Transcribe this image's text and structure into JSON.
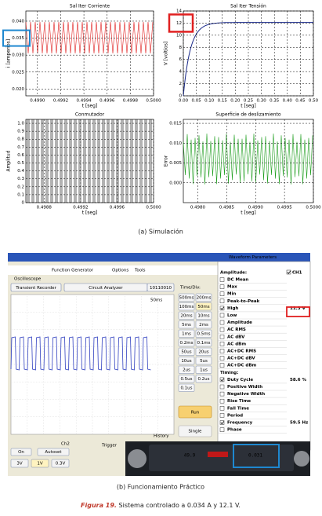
{
  "panels": [
    {
      "title": "Sal Iter Corriente",
      "xlabel": "t [seg]",
      "ylabel": "i [amperios]",
      "xlim": [
        0.4989,
        0.5
      ],
      "ylim": [
        0.018,
        0.043
      ],
      "xticks": [
        {
          "value": 0.499,
          "label": "0.4990"
        },
        {
          "value": 0.4992,
          "label": "0.4992"
        },
        {
          "value": 0.4994,
          "label": "0.4994"
        },
        {
          "value": 0.4996,
          "label": "0.4996"
        },
        {
          "value": 0.4998,
          "label": "0.4998"
        },
        {
          "value": 0.5,
          "label": "0.5000"
        }
      ],
      "yticks": [
        {
          "value": 0.02,
          "label": "0.020"
        },
        {
          "value": 0.025,
          "label": "0.025"
        },
        {
          "value": 0.03,
          "label": "0.030"
        },
        {
          "value": 0.035,
          "label": "0.035"
        },
        {
          "value": 0.04,
          "label": "0.040"
        }
      ],
      "color": "#e02020"
    },
    {
      "title": "Sal Iter Tensión",
      "xlabel": "t [seg]",
      "ylabel": "V [voltios]",
      "xlim": [
        0,
        0.5
      ],
      "ylim": [
        0,
        14
      ],
      "xticks": [
        {
          "value": 0,
          "label": "0.00"
        },
        0.05,
        {
          "value": 0.1,
          "label": "0.10"
        },
        0.15,
        {
          "value": 0.2,
          "label": "0.20"
        },
        0.25,
        {
          "value": 0.3,
          "label": "0.30"
        },
        0.35,
        {
          "value": 0.4,
          "label": "0.40"
        },
        0.45,
        {
          "value": 0.5,
          "label": "0.50"
        }
      ],
      "yticks": [
        0,
        2,
        4,
        6,
        8,
        10,
        12,
        14
      ],
      "color": "#1a2a8a"
    },
    {
      "title": "Conmutador",
      "xlabel": "t [seg]",
      "ylabel": "Amplitud",
      "xlim": [
        0.4986,
        0.5
      ],
      "ylim": [
        0,
        1.05
      ],
      "xticks": [
        {
          "value": 0.4988,
          "label": "0.4988"
        },
        {
          "value": 0.4992,
          "label": "0.4992"
        },
        {
          "value": 0.4996,
          "label": "0.4996"
        },
        {
          "value": 0.5,
          "label": "0.5000"
        }
      ],
      "yticks": [
        0,
        0.1,
        0.2,
        0.3,
        0.4,
        0.5,
        0.6,
        0.7,
        0.8,
        0.9,
        {
          "value": 1,
          "label": "1.0"
        }
      ],
      "color": "#000000"
    },
    {
      "title": "Superficie de deslizamiento",
      "xlabel": "t [seg]",
      "ylabel": "Error",
      "xlim": [
        0.49775,
        0.5
      ],
      "ylim": [
        -0.005,
        0.016
      ],
      "xticks": [
        {
          "value": 0.498,
          "label": "0.4980"
        },
        {
          "value": 0.4985,
          "label": "0.4985"
        },
        {
          "value": 0.499,
          "label": "0.4990"
        },
        {
          "value": 0.4995,
          "label": "0.4995"
        },
        {
          "value": 0.5,
          "label": "0.5000"
        }
      ],
      "yticks": [
        {
          "value": 0,
          "label": "0.000"
        },
        {
          "value": 0.005,
          "label": "0.005"
        },
        {
          "value": 0.01,
          "label": "0.010"
        },
        {
          "value": 0.015,
          "label": "0.015"
        }
      ],
      "color": "#1e9e1e"
    }
  ],
  "caption_a": "(a) Simulación",
  "scope": {
    "menu": [
      "Function Generator",
      "Options",
      "Tools"
    ],
    "mode": "Oscilloscope",
    "buttons": [
      "Transient Recorder",
      "Circuit Analyzer",
      "10110010"
    ],
    "timediv_label": "Time/Div:",
    "timediv": [
      "500ms",
      "200ms",
      "100ms",
      "50ms",
      "20ms",
      "10ms",
      "5ms",
      "2ms",
      "1ms",
      "0.5ms",
      "0.2ms",
      "0.1ms",
      "50us",
      "20us",
      "10us",
      "5us",
      "2us",
      "1us",
      "0.5us",
      "0.2us",
      "0.1us"
    ],
    "timebase": "50ms",
    "run": "Run",
    "single": "Single",
    "history": "History",
    "channel": "Ch2",
    "trigger": "Trigger",
    "controls": [
      "On",
      "Autoset"
    ],
    "volts": [
      "3V",
      "1V",
      "0.3V"
    ]
  },
  "params": {
    "title": "Waveform Parameters",
    "amplitude_label": "Amplitude:",
    "channel": "CH1",
    "amplitude_items": [
      {
        "label": "DC Mean"
      },
      {
        "label": "Max"
      },
      {
        "label": "Min"
      },
      {
        "label": "Peak-to-Peak"
      },
      {
        "label": "High",
        "checked": true,
        "value": "11.3 V",
        "color": "#1e9e1e"
      },
      {
        "label": "Low",
        "color": "#1e9e1e"
      },
      {
        "label": "Amplitude",
        "color": "#1e9e1e"
      },
      {
        "label": "AC RMS"
      },
      {
        "label": "AC dBV"
      },
      {
        "label": "AC dBm"
      },
      {
        "label": "AC+DC RMS"
      },
      {
        "label": "AC+DC dBV"
      },
      {
        "label": "AC+DC dBm"
      }
    ],
    "timing_label": "Timing:",
    "timing_items": [
      {
        "label": "Duty Cycle",
        "checked": true,
        "value": "58.6 %"
      },
      {
        "label": "Positive Width"
      },
      {
        "label": "Negative Width"
      },
      {
        "label": "Rise Time",
        "color": "#1e9e1e"
      },
      {
        "label": "Fall Time",
        "color": "#1e9e1e"
      },
      {
        "label": "Period"
      },
      {
        "label": "Frequency",
        "checked": true,
        "value": "59.5 Hz"
      },
      {
        "label": "Phase"
      }
    ]
  },
  "meter": [
    "49.9",
    "0.031"
  ],
  "caption_b": "(b) Funcionamiento Práctico",
  "figure_label": "Figura 19.",
  "figure_caption": " Sistema controlado a 0.034 A y 12.1 V."
}
